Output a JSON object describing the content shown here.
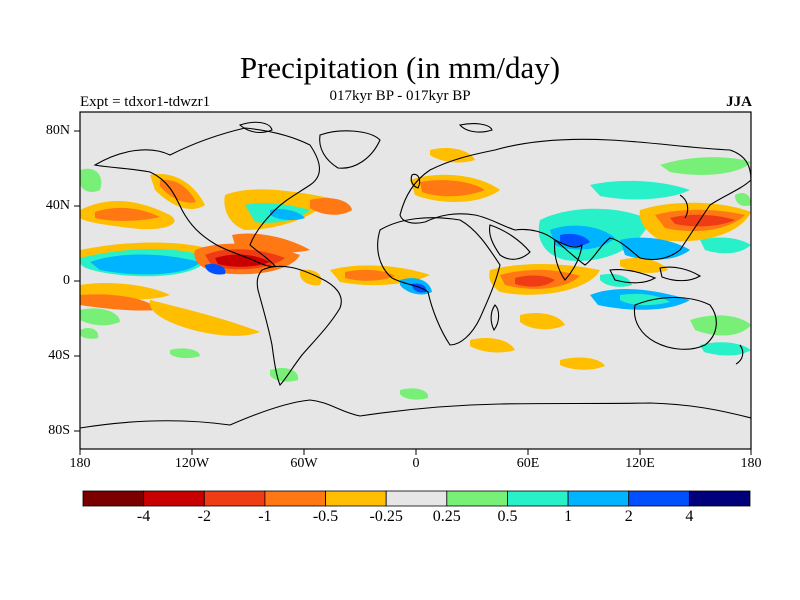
{
  "title": "Precipitation (in mm/day)",
  "subtitle": "017kyr BP - 017kyr BP",
  "experiment": "Expt = tdxor1-tdwzr1",
  "season": "JJA",
  "map": {
    "lat_labels": [
      "80N",
      "40N",
      "0",
      "40S",
      "80S"
    ],
    "lon_labels": [
      "180",
      "120W",
      "60W",
      "0",
      "60E",
      "120E",
      "180"
    ],
    "background": "#e6e6e6"
  },
  "colorbar": {
    "colors": [
      "#7a0000",
      "#c80000",
      "#f03c14",
      "#ff7814",
      "#ffbe00",
      "#e6e6e6",
      "#78f078",
      "#28f0c8",
      "#00b4ff",
      "#0050ff",
      "#00007a"
    ],
    "labels": [
      "-4",
      "-2",
      "-1",
      "-0.5",
      "-0.25",
      "0.25",
      "0.5",
      "1",
      "2",
      "4"
    ]
  }
}
